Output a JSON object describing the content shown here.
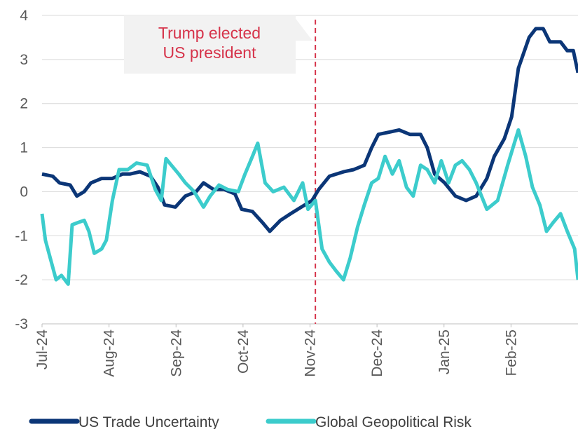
{
  "chart_data": {
    "type": "line",
    "annotation": {
      "lines": [
        "Trump elected",
        "US president"
      ],
      "x": 4.08,
      "color": "#d6334a"
    },
    "xlim": [
      0,
      8
    ],
    "xticks": [
      {
        "value": 0,
        "label": "Jul-24"
      },
      {
        "value": 1,
        "label": "Aug-24"
      },
      {
        "value": 2,
        "label": "Sep-24"
      },
      {
        "value": 3,
        "label": "Oct-24"
      },
      {
        "value": 4,
        "label": "Nov-24"
      },
      {
        "value": 5,
        "label": "Dec-24"
      },
      {
        "value": 6,
        "label": "Jan-25"
      },
      {
        "value": 7,
        "label": "Feb-25"
      }
    ],
    "ylim": [
      -3,
      4
    ],
    "yticks": [
      -3,
      -2,
      -1,
      0,
      1,
      2,
      3,
      4
    ],
    "grid": true,
    "legend": "bottom",
    "series": [
      {
        "name": "US Trade Uncertainty",
        "color": "#0b3677",
        "x": [
          0,
          0.16,
          0.26,
          0.42,
          0.52,
          0.63,
          0.73,
          0.89,
          1.05,
          1.2,
          1.31,
          1.46,
          1.62,
          1.73,
          1.83,
          1.99,
          2.14,
          2.3,
          2.41,
          2.56,
          2.72,
          2.88,
          2.98,
          3.14,
          3.29,
          3.4,
          3.56,
          3.71,
          3.87,
          4.03,
          4.13,
          4.29,
          4.5,
          4.65,
          4.81,
          4.92,
          5.02,
          5.18,
          5.33,
          5.49,
          5.65,
          5.75,
          5.86,
          6.01,
          6.17,
          6.33,
          6.48,
          6.64,
          6.75,
          6.9,
          7.01,
          7.11,
          7.27,
          7.37,
          7.48,
          7.58,
          7.74,
          7.84,
          7.93,
          8.0
        ],
        "values": [
          0.4,
          0.35,
          0.2,
          0.15,
          -0.1,
          0.0,
          0.2,
          0.3,
          0.3,
          0.4,
          0.4,
          0.45,
          0.35,
          0.1,
          -0.3,
          -0.35,
          -0.1,
          0.0,
          0.2,
          0.05,
          0.05,
          -0.05,
          -0.4,
          -0.45,
          -0.7,
          -0.9,
          -0.65,
          -0.5,
          -0.35,
          -0.2,
          0.05,
          0.35,
          0.45,
          0.5,
          0.6,
          1.0,
          1.3,
          1.35,
          1.4,
          1.3,
          1.3,
          1.0,
          0.4,
          0.2,
          -0.1,
          -0.2,
          -0.1,
          0.3,
          0.8,
          1.2,
          1.7,
          2.8,
          3.5,
          3.7,
          3.7,
          3.4,
          3.4,
          3.2,
          3.2,
          2.7
        ]
      },
      {
        "name": "Global Geopolitical Risk",
        "color": "#3ccccc",
        "x": [
          0,
          0.05,
          0.21,
          0.29,
          0.39,
          0.45,
          0.54,
          0.63,
          0.7,
          0.78,
          0.89,
          0.96,
          1.05,
          1.15,
          1.28,
          1.41,
          1.57,
          1.69,
          1.78,
          1.85,
          1.93,
          2.04,
          2.14,
          2.27,
          2.41,
          2.51,
          2.64,
          2.77,
          2.93,
          3.03,
          3.14,
          3.22,
          3.33,
          3.45,
          3.61,
          3.76,
          3.89,
          3.97,
          4.08,
          4.18,
          4.29,
          4.39,
          4.5,
          4.6,
          4.71,
          4.81,
          4.92,
          5.02,
          5.12,
          5.23,
          5.33,
          5.44,
          5.54,
          5.65,
          5.75,
          5.86,
          5.96,
          6.07,
          6.17,
          6.27,
          6.38,
          6.48,
          6.64,
          6.8,
          6.95,
          7.11,
          7.22,
          7.32,
          7.43,
          7.53,
          7.63,
          7.74,
          7.84,
          7.95,
          8.0
        ],
        "values": [
          -0.5,
          -1.1,
          -2.0,
          -1.9,
          -2.1,
          -0.75,
          -0.7,
          -0.65,
          -0.9,
          -1.4,
          -1.3,
          -1.1,
          -0.2,
          0.5,
          0.5,
          0.65,
          0.6,
          0.05,
          -0.2,
          0.75,
          0.6,
          0.4,
          0.2,
          0.0,
          -0.35,
          -0.1,
          0.15,
          0.05,
          0.0,
          0.4,
          0.8,
          1.1,
          0.2,
          0.0,
          0.1,
          -0.2,
          0.2,
          -0.4,
          -0.2,
          -1.3,
          -1.6,
          -1.8,
          -2.0,
          -1.5,
          -0.8,
          -0.3,
          0.2,
          0.3,
          0.8,
          0.4,
          0.7,
          0.1,
          -0.1,
          0.6,
          0.5,
          0.2,
          0.7,
          0.2,
          0.6,
          0.7,
          0.5,
          0.2,
          -0.4,
          -0.2,
          0.6,
          1.4,
          0.8,
          0.1,
          -0.3,
          -0.9,
          -0.7,
          -0.5,
          -0.9,
          -1.3,
          -2.0
        ]
      }
    ]
  }
}
